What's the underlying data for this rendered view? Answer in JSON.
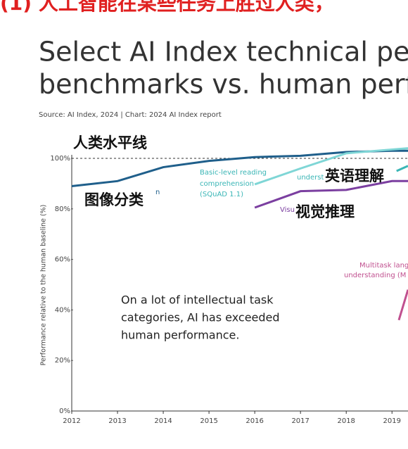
{
  "chart_data": {
    "type": "line",
    "header": "(1) 人工智能在某些任务上胜过人类，",
    "title": [
      "Select AI Index technical per",
      "benchmarks vs. human perfo"
    ],
    "source": "Source: AI Index, 2024 | Chart: 2024 AI Index report",
    "ylabel": "Performance relative to the human baseline (%)",
    "xlim": [
      2012,
      2019.35
    ],
    "xticks": [
      2012,
      2013,
      2014,
      2015,
      2016,
      2017,
      2018,
      2019
    ],
    "ylim": [
      0,
      100
    ],
    "yticks": [
      {
        "value": 0,
        "label": "0%"
      },
      {
        "value": 20,
        "label": "20%"
      },
      {
        "value": 40,
        "label": "40%"
      },
      {
        "value": 60,
        "label": "60%"
      },
      {
        "value": 80,
        "label": "80%"
      },
      {
        "value": 100,
        "label": "100%"
      }
    ],
    "baseline": 100,
    "series": [
      {
        "color": "#1f5f8b",
        "x": [
          2012,
          2013,
          2014,
          2015,
          2016,
          2017,
          2018,
          2019,
          2019.35
        ],
        "values": [
          89,
          91,
          96.5,
          99,
          100.5,
          101,
          102.5,
          103,
          103
        ]
      },
      {
        "color": "#7fd6d6",
        "x": [
          2016,
          2017,
          2018,
          2019,
          2019.35
        ],
        "values": [
          89.7,
          96,
          102,
          103.5,
          104
        ]
      },
      {
        "color": "#3bb6b6",
        "x": [
          2019.1,
          2019.35
        ],
        "values": [
          95,
          97
        ]
      },
      {
        "color": "#7b3fa0",
        "x": [
          2016,
          2017,
          2018,
          2019,
          2019.35
        ],
        "values": [
          80.5,
          87,
          87.5,
          91,
          91
        ]
      },
      {
        "color": "#c0508f",
        "x": [
          2019.15,
          2019.35
        ],
        "values": [
          36,
          48
        ]
      }
    ],
    "annotations": [
      "Basic-level reading",
      "comprehension",
      "(SQuAD 1.1)",
      "underst",
      "Visu",
      "Multitask lang",
      "understanding (M",
      "n",
      "On a lot of intellectual task",
      "categories, AI has exceeded",
      "human performance."
    ],
    "overlay_labels": [
      "人类水平线",
      "图像分类",
      "英语理解",
      "视觉推理"
    ]
  }
}
